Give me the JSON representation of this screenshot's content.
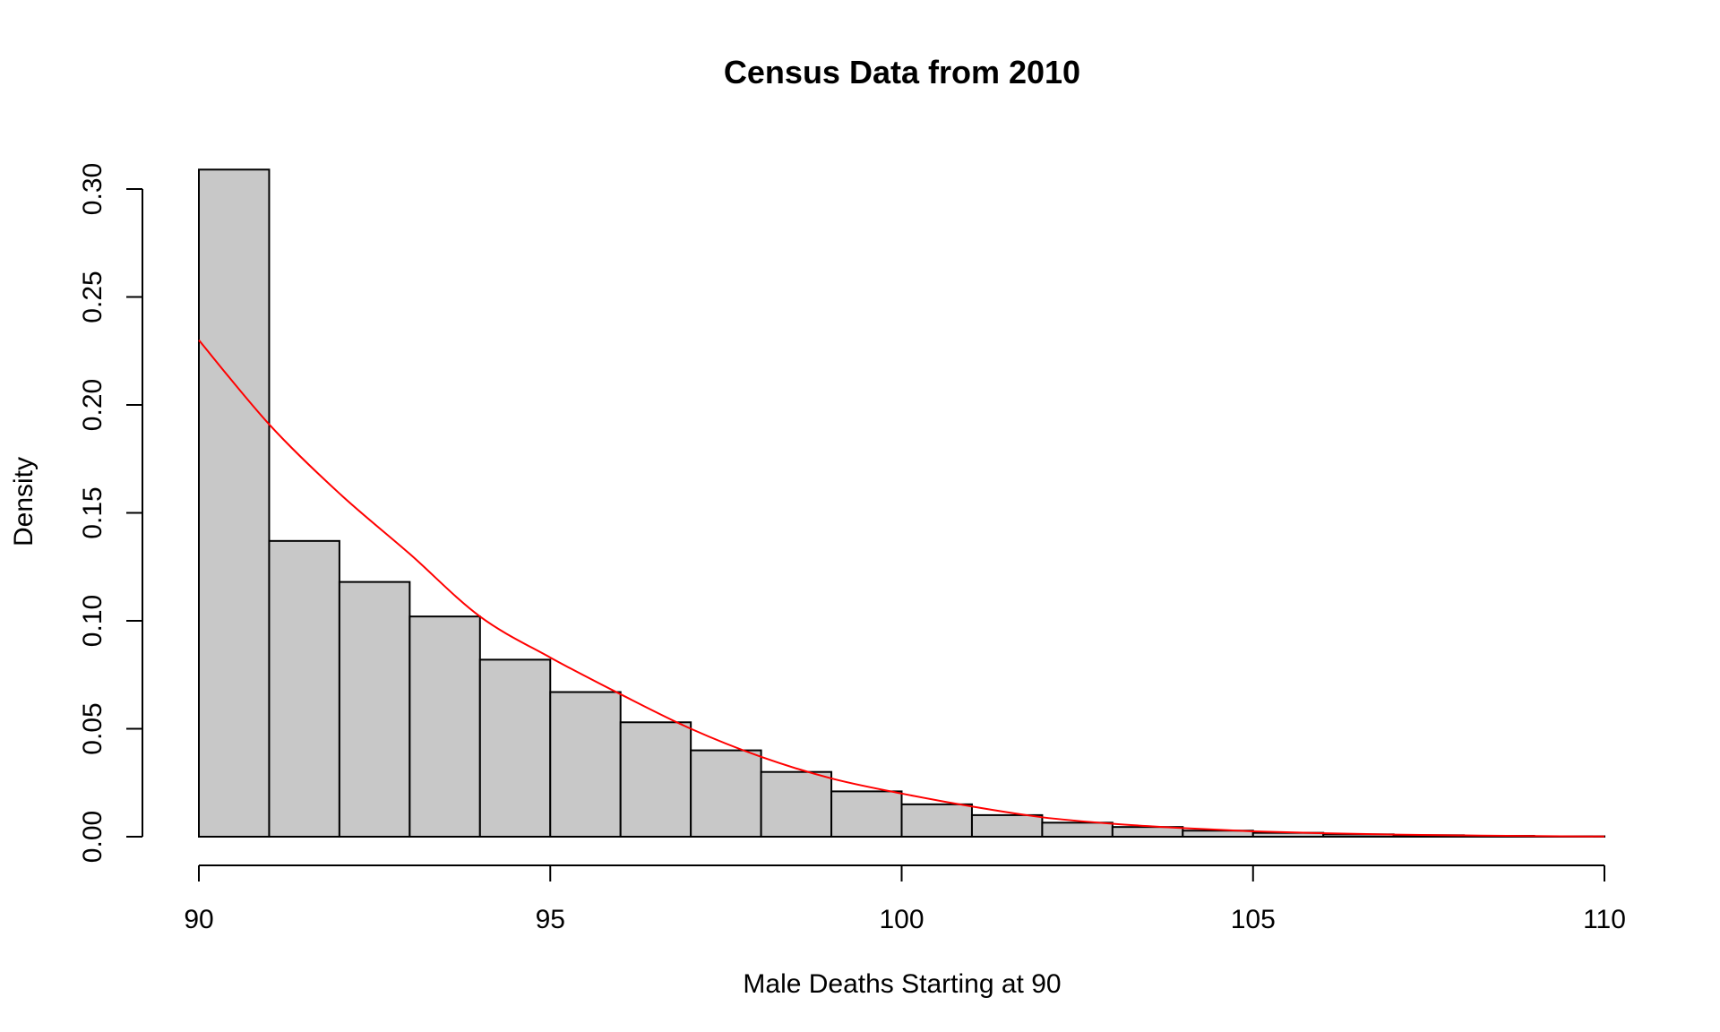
{
  "chart_data": {
    "type": "bar",
    "title": "Census Data from 2010",
    "xlabel": "Male Deaths Starting at 90",
    "ylabel": "Density",
    "xlim": [
      90,
      110
    ],
    "ylim": [
      0,
      0.3
    ],
    "x_ticks": [
      90,
      95,
      100,
      105,
      110
    ],
    "x_tick_labels": [
      "90",
      "95",
      "100",
      "105",
      "110"
    ],
    "y_ticks": [
      0,
      0.05,
      0.1,
      0.15,
      0.2,
      0.25,
      0.3
    ],
    "y_tick_labels": [
      "0.00",
      "0.05",
      "0.10",
      "0.15",
      "0.20",
      "0.25",
      "0.30"
    ],
    "bins": [
      {
        "start": 90,
        "end": 91,
        "density": 0.309
      },
      {
        "start": 91,
        "end": 92,
        "density": 0.137
      },
      {
        "start": 92,
        "end": 93,
        "density": 0.118
      },
      {
        "start": 93,
        "end": 94,
        "density": 0.102
      },
      {
        "start": 94,
        "end": 95,
        "density": 0.082
      },
      {
        "start": 95,
        "end": 96,
        "density": 0.067
      },
      {
        "start": 96,
        "end": 97,
        "density": 0.053
      },
      {
        "start": 97,
        "end": 98,
        "density": 0.04
      },
      {
        "start": 98,
        "end": 99,
        "density": 0.03
      },
      {
        "start": 99,
        "end": 100,
        "density": 0.021
      },
      {
        "start": 100,
        "end": 101,
        "density": 0.015
      },
      {
        "start": 101,
        "end": 102,
        "density": 0.01
      },
      {
        "start": 102,
        "end": 103,
        "density": 0.0065
      },
      {
        "start": 103,
        "end": 104,
        "density": 0.0045
      },
      {
        "start": 104,
        "end": 105,
        "density": 0.0028
      },
      {
        "start": 105,
        "end": 106,
        "density": 0.0018
      },
      {
        "start": 106,
        "end": 107,
        "density": 0.0011
      },
      {
        "start": 107,
        "end": 108,
        "density": 0.0007
      },
      {
        "start": 108,
        "end": 109,
        "density": 0.0004
      },
      {
        "start": 109,
        "end": 110,
        "density": 0.0002
      }
    ],
    "curve": {
      "color": "#ff0000",
      "points": [
        [
          90,
          0.23
        ],
        [
          91,
          0.191
        ],
        [
          92,
          0.159
        ],
        [
          93,
          0.131
        ],
        [
          94,
          0.102
        ],
        [
          95,
          0.083
        ],
        [
          96,
          0.066
        ],
        [
          97,
          0.05
        ],
        [
          98,
          0.037
        ],
        [
          99,
          0.027
        ],
        [
          100,
          0.02
        ],
        [
          101,
          0.014
        ],
        [
          102,
          0.009
        ],
        [
          103,
          0.006
        ],
        [
          104,
          0.004
        ],
        [
          105,
          0.0025
        ],
        [
          106,
          0.0016
        ],
        [
          107,
          0.001
        ],
        [
          108,
          0.0006
        ],
        [
          109,
          0.0003
        ],
        [
          110,
          0.0001
        ]
      ]
    },
    "bar_fill": "#c8c8c8",
    "bar_stroke": "#000000",
    "grid": false,
    "legend": "none"
  }
}
